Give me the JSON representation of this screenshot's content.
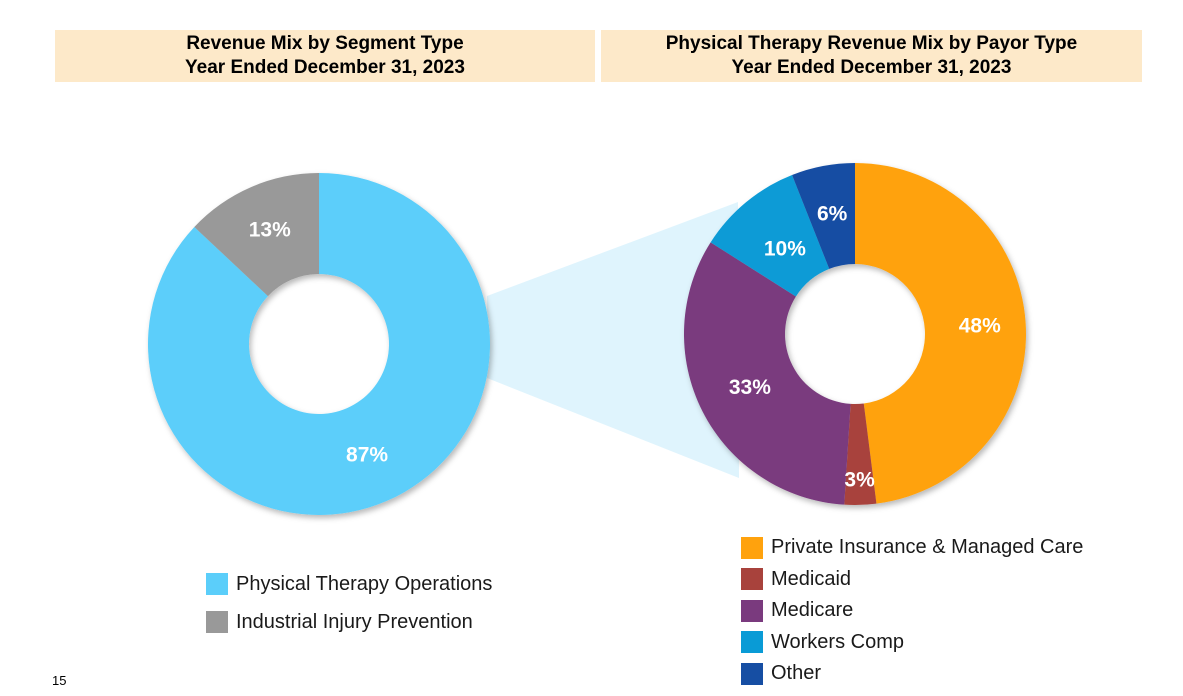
{
  "page_number": "15",
  "chart_data": [
    {
      "type": "pie",
      "variant": "donut",
      "title": [
        "Revenue Mix by Segment Type",
        "Year Ended December 31, 2023"
      ],
      "categories": [
        "Physical Therapy Operations",
        "Industrial Injury Prevention"
      ],
      "values": [
        87,
        13
      ],
      "labels": [
        "87%",
        "13%"
      ],
      "colors": [
        "#5bcefa",
        "#999999"
      ],
      "legend_position": "bottom"
    },
    {
      "type": "pie",
      "variant": "donut",
      "title": [
        "Physical Therapy Revenue Mix by Payor Type",
        "Year Ended December 31, 2023"
      ],
      "categories": [
        "Private Insurance & Managed Care",
        "Medicaid",
        "Medicare",
        "Workers Comp",
        "Other"
      ],
      "values": [
        48,
        3,
        33,
        10,
        6
      ],
      "labels": [
        "48%",
        "3%",
        "33%",
        "10%",
        "6%"
      ],
      "colors": [
        "#ffa20d",
        "#a8423c",
        "#7a3a7e",
        "#099bd6",
        "#164ea3"
      ],
      "legend_position": "bottom"
    }
  ],
  "connector_color": "#dff4fd"
}
